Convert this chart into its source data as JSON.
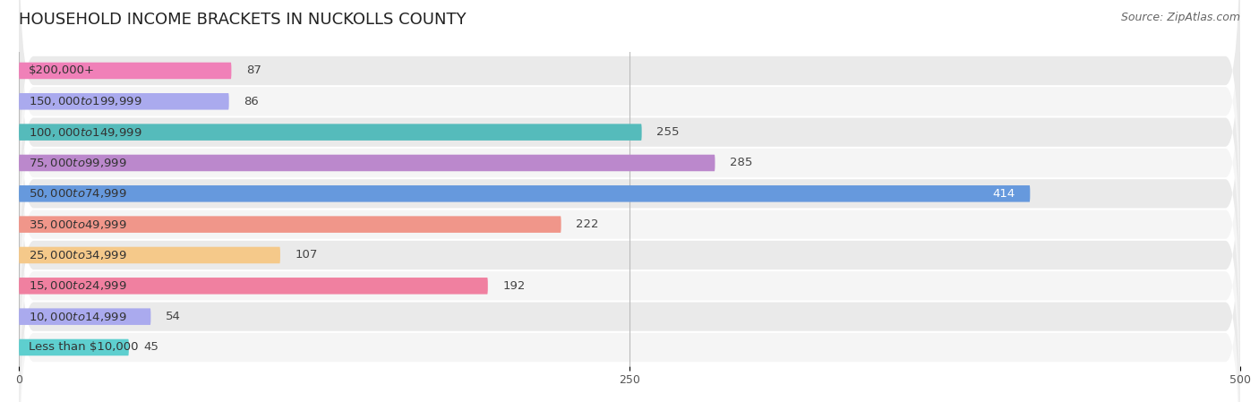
{
  "title": "HOUSEHOLD INCOME BRACKETS IN NUCKOLLS COUNTY",
  "source": "Source: ZipAtlas.com",
  "categories": [
    "Less than $10,000",
    "$10,000 to $14,999",
    "$15,000 to $24,999",
    "$25,000 to $34,999",
    "$35,000 to $49,999",
    "$50,000 to $74,999",
    "$75,000 to $99,999",
    "$100,000 to $149,999",
    "$150,000 to $199,999",
    "$200,000+"
  ],
  "values": [
    45,
    54,
    192,
    107,
    222,
    414,
    285,
    255,
    86,
    87
  ],
  "bar_colors": [
    "#5ECFCF",
    "#AAAAEE",
    "#F080A0",
    "#F5C98A",
    "#F0968A",
    "#6699DD",
    "#BB88CC",
    "#55BBBB",
    "#AAAAEE",
    "#F080B8"
  ],
  "xlim": [
    0,
    500
  ],
  "xticks": [
    0,
    250,
    500
  ],
  "title_fontsize": 13,
  "label_fontsize": 9.5,
  "value_fontsize": 9.5,
  "source_fontsize": 9,
  "fig_bg_color": "#FFFFFF"
}
